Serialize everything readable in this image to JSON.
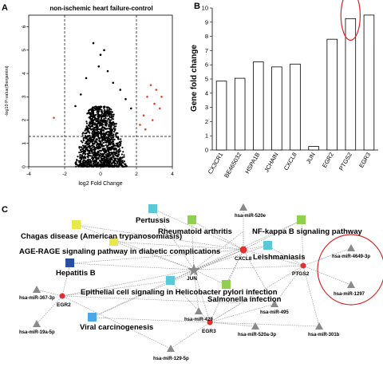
{
  "panel_letters": {
    "a": "A",
    "b": "B",
    "c": "C"
  },
  "chart_data": [
    {
      "type": "scatter",
      "title": "non-ischemic heart failure-control",
      "xlabel": "log2 Fold Change",
      "ylabel": "-log10 P-value(Benjamini)",
      "xlim": [
        -4,
        4
      ],
      "ylim": [
        0,
        6.5
      ],
      "xticks": [
        "-4",
        "-2",
        "0",
        "2",
        "4"
      ],
      "yticks": [
        "0",
        "1",
        "2",
        "3",
        "4",
        "5",
        "6"
      ],
      "vlines": [
        -2,
        2
      ],
      "hline": 1.3,
      "highlight_color": "#e0452b",
      "base_color": "#000000",
      "highlighted_points": [
        {
          "x": 2.8,
          "y": 3.5
        },
        {
          "x": 3.1,
          "y": 3.3
        },
        {
          "x": 3.4,
          "y": 3.0
        },
        {
          "x": 2.6,
          "y": 3.0
        },
        {
          "x": 3.0,
          "y": 2.7
        },
        {
          "x": 3.3,
          "y": 2.5
        },
        {
          "x": 2.4,
          "y": 2.2
        },
        {
          "x": 2.9,
          "y": 2.0
        },
        {
          "x": 2.5,
          "y": 1.6
        },
        {
          "x": 2.2,
          "y": 1.8
        },
        {
          "x": -2.6,
          "y": 2.1
        }
      ],
      "outlier_points": [
        {
          "x": -0.4,
          "y": 5.3
        },
        {
          "x": 0.0,
          "y": 4.8
        },
        {
          "x": -0.1,
          "y": 4.3
        },
        {
          "x": 0.4,
          "y": 4.1
        },
        {
          "x": -0.8,
          "y": 3.8
        },
        {
          "x": 0.7,
          "y": 3.6
        },
        {
          "x": 1.1,
          "y": 3.3
        },
        {
          "x": -1.1,
          "y": 3.1
        },
        {
          "x": 1.4,
          "y": 2.9
        },
        {
          "x": -1.4,
          "y": 2.6
        },
        {
          "x": 1.7,
          "y": 2.5
        },
        {
          "x": 0.2,
          "y": 5.0
        }
      ]
    },
    {
      "type": "bar",
      "categories": [
        "CX3CR1",
        "BE465032",
        "HSPA1B",
        "JCHAIN",
        "CXCL8",
        "JUN",
        "EGR2",
        "PTGS2",
        "EGR3"
      ],
      "values": [
        4.85,
        5.05,
        6.2,
        5.85,
        6.05,
        0.25,
        7.8,
        9.25,
        9.5
      ],
      "ylabel": "Gene fold change",
      "ylim": [
        0,
        10
      ],
      "yticks": [
        "0",
        "1",
        "2",
        "3",
        "4",
        "5",
        "6",
        "7",
        "8",
        "9",
        "10"
      ],
      "highlight": "PTGS2",
      "highlight_color": "#e02020"
    }
  ],
  "network": {
    "pathways": [
      {
        "label": "Pertussis",
        "color": "#5bc8d8"
      },
      {
        "label": "Rheumatoid arthritis",
        "color": "#8fd14f"
      },
      {
        "label": "NF-kappa B signaling pathway",
        "color": "#8fd14f"
      },
      {
        "label": "Chagas disease (American trypanosomiasis)",
        "color": "#e8e84a"
      },
      {
        "label": "AGE-RAGE signaling pathway in diabetic complications",
        "color": "#e8e84a"
      },
      {
        "label": "Leishmaniasis",
        "color": "#5bc8d8"
      },
      {
        "label": "Hepatitis B",
        "color": "#2a4f9e"
      },
      {
        "label": "Epithelial cell signaling in Helicobacter pylori infection",
        "color": "#5bc8d8"
      },
      {
        "label": "Salmonella infection",
        "color": "#8fd14f"
      },
      {
        "label": "Viral carcinogenesis",
        "color": "#4aa8e8"
      }
    ],
    "genes": [
      "CXCL8",
      "JUN",
      "PTGS2",
      "EGR2",
      "EGR3"
    ],
    "mirnas": [
      "hsa-miR-520e",
      "hsa-miR-4649-3p",
      "hsa-miR-1297",
      "hsa-miR-367-3p",
      "hsa-miR-495",
      "hsa-miR-429",
      "hsa-miR-19a-5p",
      "hsa-miR-520a-3p",
      "hsa-miR-301b",
      "hsa-miR-129-5p"
    ],
    "gene_color": "#e03030",
    "mirna_color": "#8a8a8a",
    "jun_color": "#8a8a8a"
  }
}
